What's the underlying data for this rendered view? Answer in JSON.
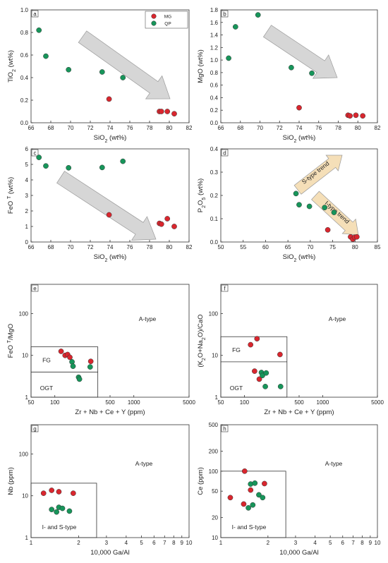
{
  "colors": {
    "MG": "#d9262e",
    "QP": "#17955a",
    "gray_arrow": "#d6d6d6",
    "orange_arrow": "#f5dfb8"
  },
  "legend": {
    "MG": "MG",
    "QP": "QP"
  },
  "chart_data": [
    {
      "panel": "a",
      "type": "scatter",
      "xlabel": "SiO2 (wt%)",
      "ylabel": "TiO2 (wt%)",
      "xlim": [
        66,
        82
      ],
      "ylim": [
        0,
        1.0
      ],
      "xticks": [
        "66",
        "68",
        "70",
        "72",
        "74",
        "76",
        "78",
        "80",
        "82"
      ],
      "yticks": [
        "0.0",
        "0.2",
        "0.4",
        "0.6",
        "0.8",
        "1.0"
      ],
      "series": [
        {
          "name": "MG",
          "x": [
            73.9,
            79.0,
            79.2,
            79.8,
            80.5
          ],
          "y": [
            0.21,
            0.1,
            0.1,
            0.1,
            0.08
          ]
        },
        {
          "name": "QP",
          "x": [
            66.8,
            67.5,
            69.8,
            73.2,
            75.3
          ],
          "y": [
            0.82,
            0.59,
            0.47,
            0.45,
            0.4
          ]
        }
      ],
      "legend_position": "top-right"
    },
    {
      "panel": "b",
      "type": "scatter",
      "xlabel": "SiO2 (wt%)",
      "ylabel": "MgO (wt%)",
      "xlim": [
        66,
        82
      ],
      "ylim": [
        0,
        1.8
      ],
      "xticks": [
        "66",
        "68",
        "70",
        "72",
        "74",
        "76",
        "78",
        "80",
        "82"
      ],
      "yticks": [
        "0.0",
        "0.2",
        "0.4",
        "0.6",
        "0.8",
        "1.0",
        "1.2",
        "1.4",
        "1.6",
        "1.8"
      ],
      "series": [
        {
          "name": "MG",
          "x": [
            74.0,
            79.0,
            79.2,
            79.8,
            80.5
          ],
          "y": [
            0.24,
            0.12,
            0.11,
            0.12,
            0.11
          ]
        },
        {
          "name": "QP",
          "x": [
            66.8,
            67.5,
            69.8,
            73.2,
            75.3
          ],
          "y": [
            1.03,
            1.53,
            1.72,
            0.88,
            0.79
          ]
        }
      ]
    },
    {
      "panel": "c",
      "type": "scatter",
      "xlabel": "SiO2 (wt%)",
      "ylabel": "FeO T (wt%)",
      "xlim": [
        66,
        82
      ],
      "ylim": [
        0,
        6
      ],
      "xticks": [
        "66",
        "68",
        "70",
        "72",
        "74",
        "76",
        "78",
        "80",
        "82"
      ],
      "yticks": [
        "0",
        "1",
        "2",
        "3",
        "4",
        "5",
        "6"
      ],
      "series": [
        {
          "name": "MG",
          "x": [
            73.9,
            79.0,
            79.2,
            79.8,
            80.5
          ],
          "y": [
            1.75,
            1.2,
            1.15,
            1.5,
            1.0
          ]
        },
        {
          "name": "QP",
          "x": [
            66.8,
            67.5,
            69.8,
            73.2,
            75.3
          ],
          "y": [
            5.45,
            4.9,
            4.78,
            4.8,
            5.2
          ]
        }
      ]
    },
    {
      "panel": "d",
      "type": "scatter",
      "xlabel": "SiO2 (wt%)",
      "ylabel": "P2O5 (wt%)",
      "xlim": [
        50,
        85
      ],
      "ylim": [
        0,
        0.4
      ],
      "xticks": [
        "50",
        "55",
        "60",
        "65",
        "70",
        "75",
        "80",
        "85"
      ],
      "yticks": [
        "0.0",
        "0.1",
        "0.2",
        "0.3",
        "0.4"
      ],
      "series": [
        {
          "name": "MG",
          "x": [
            73.9,
            79.0,
            79.5,
            79.9,
            80.4
          ],
          "y": [
            0.052,
            0.022,
            0.012,
            0.02,
            0.022
          ]
        },
        {
          "name": "QP",
          "x": [
            66.8,
            67.5,
            69.8,
            73.2,
            75.3
          ],
          "y": [
            0.208,
            0.16,
            0.153,
            0.148,
            0.127
          ]
        }
      ],
      "annotations": [
        "S-type trend",
        "I-type trend"
      ]
    },
    {
      "panel": "e",
      "type": "scatter",
      "scale": "log",
      "xlabel": "Zr + Nb + Ce + Y (ppm)",
      "ylabel": "FeO T/MgO",
      "xlim": [
        50,
        5000
      ],
      "ylim": [
        1,
        500
      ],
      "xticks": [
        "50",
        "100",
        "500",
        "1000",
        "5000"
      ],
      "yticks": [
        "1",
        "10",
        "100"
      ],
      "series": [
        {
          "name": "MG",
          "x": [
            120,
            135,
            145,
            155,
            285
          ],
          "y": [
            12.5,
            10.0,
            10.5,
            9.0,
            7.2
          ]
        },
        {
          "name": "QP",
          "x": [
            165,
            170,
            200,
            205,
            280
          ],
          "y": [
            7.0,
            5.5,
            3.0,
            2.7,
            5.3
          ]
        }
      ],
      "regions": [
        "A-type",
        "FG",
        "OGT"
      ]
    },
    {
      "panel": "f",
      "type": "scatter",
      "scale": "log",
      "xlabel": "Zr + Nb + Ce + Y (ppm)",
      "ylabel": "(K2O+Na2O)/CaO",
      "xlim": [
        50,
        5000
      ],
      "ylim": [
        1,
        500
      ],
      "xticks": [
        "50",
        "100",
        "500",
        "1000",
        "5000"
      ],
      "yticks": [
        "1",
        "10",
        "100"
      ],
      "series": [
        {
          "name": "MG",
          "x": [
            120,
            135,
            145,
            155,
            285
          ],
          "y": [
            18,
            4.2,
            25,
            2.7,
            10.5
          ]
        },
        {
          "name": "QP",
          "x": [
            165,
            170,
            185,
            190,
            290
          ],
          "y": [
            3.9,
            3.3,
            1.8,
            3.8,
            1.8
          ]
        }
      ],
      "regions": [
        "A-type",
        "FG",
        "OGT"
      ]
    },
    {
      "panel": "g",
      "type": "scatter",
      "scale": "log",
      "xlabel": "10,000 Ga/Al",
      "ylabel": "Nb (ppm)",
      "xlim": [
        1,
        10
      ],
      "ylim": [
        1,
        500
      ],
      "xticks": [
        "1",
        "2",
        "3",
        "4",
        "5",
        "6",
        "7",
        "8",
        "9",
        "10"
      ],
      "yticks": [
        "1",
        "10",
        "100"
      ],
      "series": [
        {
          "name": "MG",
          "x": [
            1.2,
            1.35,
            1.5,
            1.85
          ],
          "y": [
            11.5,
            13.5,
            12.5,
            11.5
          ]
        },
        {
          "name": "QP",
          "x": [
            1.35,
            1.45,
            1.5,
            1.58,
            1.75
          ],
          "y": [
            4.7,
            4.1,
            5.3,
            5.0,
            4.3
          ]
        }
      ],
      "regions": [
        "A-type",
        "I- and S-type"
      ]
    },
    {
      "panel": "h",
      "type": "scatter",
      "scale": "log",
      "xlabel": "10,000 Ga/Al",
      "ylabel": "Ce (ppm)",
      "xlim": [
        1,
        10
      ],
      "ylim": [
        10,
        500
      ],
      "xticks": [
        "1",
        "2",
        "3",
        "4",
        "5",
        "6",
        "7",
        "8",
        "9",
        "10"
      ],
      "yticks": [
        "10",
        "20",
        "50",
        "100",
        "200",
        "500"
      ],
      "series": [
        {
          "name": "MG",
          "x": [
            1.15,
            1.4,
            1.42,
            1.55,
            1.9
          ],
          "y": [
            40,
            32,
            100,
            52,
            65
          ]
        },
        {
          "name": "QP",
          "x": [
            1.5,
            1.55,
            1.6,
            1.65,
            1.75,
            1.85
          ],
          "y": [
            28,
            64,
            31,
            66,
            44,
            40
          ]
        }
      ],
      "regions": [
        "A-type",
        "I- and S-type"
      ]
    }
  ]
}
